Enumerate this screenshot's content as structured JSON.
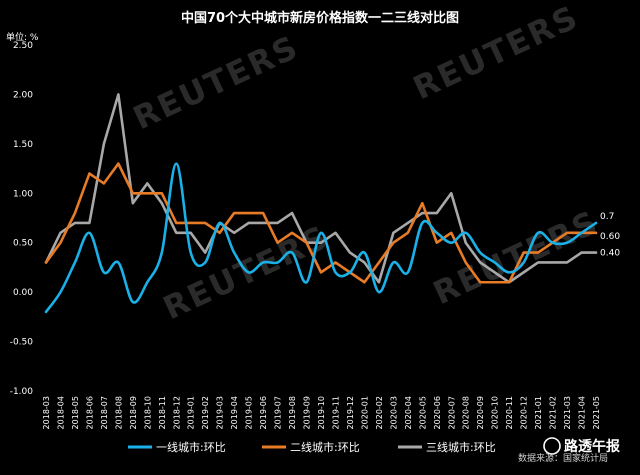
{
  "chart_data": {
    "type": "line",
    "title": "中国70个大中城市新房价格指数一二三线对比图",
    "ylabel": "单位: %",
    "ylim": [
      -1.0,
      2.5
    ],
    "yticks": [
      "2.50",
      "2.00",
      "1.50",
      "1.00",
      "0.50",
      "0.00",
      "-0.50",
      "-1.00"
    ],
    "x": [
      "2018-03",
      "2018-04",
      "2018-05",
      "2018-06",
      "2018-07",
      "2018-08",
      "2018-09",
      "2018-10",
      "2018-11",
      "2018-12",
      "2019-01",
      "2019-02",
      "2019-03",
      "2019-04",
      "2019-05",
      "2019-06",
      "2019-07",
      "2019-08",
      "2019-09",
      "2019-10",
      "2019-11",
      "2019-12",
      "2020-01",
      "2020-02",
      "2020-03",
      "2020-04",
      "2020-05",
      "2020-06",
      "2020-07",
      "2020-08",
      "2020-09",
      "2020-10",
      "2020-11",
      "2020-12",
      "2021-01",
      "2021-02",
      "2021-03",
      "2021-04",
      "2021-05"
    ],
    "series": [
      {
        "name": "一线城市:环比",
        "color": "#1ab0e8",
        "end_label": "0.7",
        "values": [
          -0.2,
          0.0,
          0.3,
          0.6,
          0.2,
          0.3,
          -0.1,
          0.1,
          0.4,
          1.3,
          0.4,
          0.3,
          0.7,
          0.4,
          0.2,
          0.3,
          0.3,
          0.4,
          0.1,
          0.6,
          0.2,
          0.2,
          0.4,
          0.0,
          0.3,
          0.2,
          0.7,
          0.6,
          0.5,
          0.6,
          0.4,
          0.3,
          0.2,
          0.3,
          0.6,
          0.5,
          0.5,
          0.6,
          0.7
        ]
      },
      {
        "name": "二线城市:环比",
        "color": "#e87c26",
        "end_label": "0.60",
        "values": [
          0.3,
          0.5,
          0.8,
          1.2,
          1.1,
          1.3,
          1.0,
          1.0,
          1.0,
          0.7,
          0.7,
          0.7,
          0.6,
          0.8,
          0.8,
          0.8,
          0.5,
          0.6,
          0.5,
          0.2,
          0.3,
          0.2,
          0.1,
          0.3,
          0.5,
          0.6,
          0.9,
          0.5,
          0.6,
          0.3,
          0.1,
          0.1,
          0.1,
          0.4,
          0.4,
          0.5,
          0.6,
          0.6,
          0.6
        ]
      },
      {
        "name": "三线城市:环比",
        "color": "#a8a8a8",
        "end_label": "0.40",
        "values": [
          0.3,
          0.6,
          0.7,
          0.7,
          1.5,
          2.0,
          0.9,
          1.1,
          0.9,
          0.6,
          0.6,
          0.4,
          0.7,
          0.6,
          0.7,
          0.7,
          0.7,
          0.8,
          0.5,
          0.5,
          0.6,
          0.4,
          0.3,
          0.1,
          0.6,
          0.7,
          0.8,
          0.8,
          1.0,
          0.5,
          0.3,
          0.2,
          0.1,
          0.2,
          0.3,
          0.3,
          0.3,
          0.4,
          0.4
        ]
      }
    ],
    "legend_position": "bottom",
    "grid": false,
    "source": "数据来源：国家统计局"
  },
  "watermark": "REUTERS",
  "logo_text": "路透午报"
}
